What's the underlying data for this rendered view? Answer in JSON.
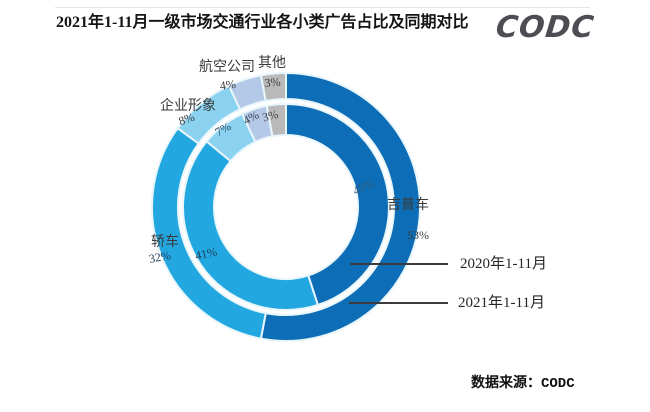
{
  "header": {
    "title": "2021年1-11月一级市场交通行业各小类广告占比及同期对比",
    "logo": "CODC"
  },
  "legend": [
    {
      "label": "2020年1-11月",
      "ring": "inner"
    },
    {
      "label": "2021年1-11月",
      "ring": "outer"
    }
  ],
  "source": {
    "label": "数据来源：CODC"
  },
  "chart_data": {
    "type": "donut",
    "subtype": "double-ring-comparison",
    "title": "2021年1-11月一级市场交通行业各小类广告占比及同期对比",
    "categories": [
      "吉普车",
      "轿车",
      "企业形象",
      "航空公司",
      "其他"
    ],
    "colors": [
      "#0d6db6",
      "#22a7e0",
      "#8ad2f0",
      "#b4c9e7",
      "#b9b9b9"
    ],
    "series": [
      {
        "name": "2021年1-11月",
        "ring": "outer",
        "values": [
          53,
          32,
          8,
          4,
          3
        ]
      },
      {
        "name": "2020年1-11月",
        "ring": "inner",
        "values": [
          45,
          41,
          7,
          4,
          3
        ]
      }
    ],
    "start_angle_deg": 0,
    "direction": "clockwise",
    "legend_position": "right",
    "unit": "%"
  }
}
